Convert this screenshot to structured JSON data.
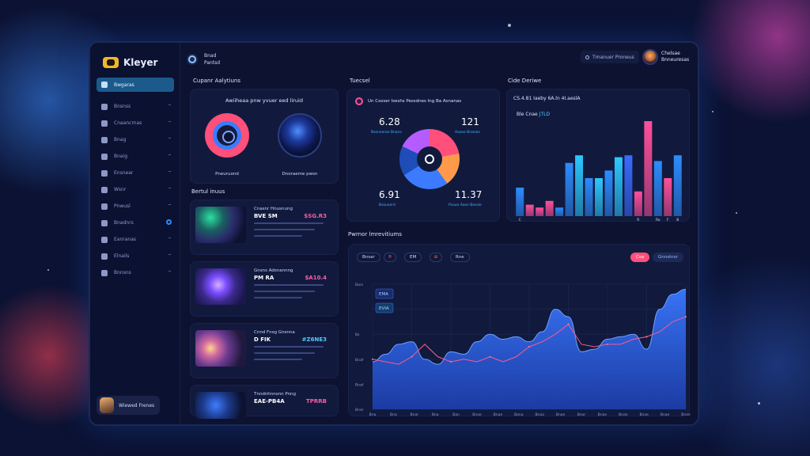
{
  "app": {
    "name": "Kleyer"
  },
  "sidebar": {
    "items": [
      {
        "label": "Bwgaras",
        "active": true
      },
      {
        "label": "Bnsnss"
      },
      {
        "label": "Cnaancrnas"
      },
      {
        "label": "Bnag"
      },
      {
        "label": "Bnaig"
      },
      {
        "label": "Ensnear"
      },
      {
        "label": "Wsnr"
      },
      {
        "label": "Pnwusl"
      },
      {
        "label": "Bnadnrs"
      },
      {
        "label": "Eanranas"
      },
      {
        "label": "Elnails"
      },
      {
        "label": "Bnnsns"
      }
    ],
    "profile_name": "Wiewed Frenes"
  },
  "header": {
    "breadcrumb_line1": "Bnad",
    "breadcrumb_line2": "Pantsd",
    "search_label": "Tmanuer Proneus",
    "user_line1": "Chelsae",
    "user_line2": "Bnneuresas"
  },
  "compact": {
    "title": "Cupanr Aalytiuns",
    "subtitle": "Awiiheaa pnw yvuer eed liruid",
    "left_label": "Pneuruond",
    "right_label": "Dnoraeme pwsn"
  },
  "media": {
    "title": "Bertul inuus",
    "items": [
      {
        "subtitle": "Cnasnr Hnusnung",
        "title": "BVE SM",
        "price": "$SG.R3",
        "thumb": "aurora"
      },
      {
        "subtitle": "Gnsns Adsnannng",
        "title": "PM RA",
        "price": "$A10.4",
        "thumb": "orb"
      },
      {
        "subtitle": "Cnnd Fnsg Gnsnna",
        "title": "D FIK",
        "price": "#Z6NE3",
        "thumb": "galaxy"
      },
      {
        "subtitle": "Tnndnhnnsnn Pnng",
        "title": "EAE-PB4A",
        "price": "TPRRB",
        "thumb": "figure"
      }
    ]
  },
  "tweets": {
    "title": "Tuecsel",
    "header": "Un Csoser Iseshs Pessdnes Ing Ba Asnanas",
    "stats": [
      {
        "value": "6.28",
        "label": "Bsonseroe Bnans"
      },
      {
        "value": "121",
        "label": "Asaoe Bnanas"
      },
      {
        "value": "6.91",
        "label": "Bsouserd"
      },
      {
        "value": "11.37",
        "label": "Psoue Aasn Bessie"
      }
    ],
    "donut_segments": [
      {
        "value": 22,
        "color": "#ff4f7a"
      },
      {
        "value": 18,
        "color": "#ff9a4a"
      },
      {
        "value": 26,
        "color": "#3c7bff"
      },
      {
        "value": 16,
        "color": "#1e4db8"
      },
      {
        "value": 18,
        "color": "#b45cff"
      }
    ]
  },
  "cite": {
    "title": "Cide Deriwe",
    "stat_line": "CS.4.81 Iaeby 6A.ln 4I.aeslA",
    "label_a": "Ble Cnae",
    "label_b": "JTLD"
  },
  "chart_data": [
    {
      "type": "bar",
      "title": "",
      "categories": [
        "C",
        "",
        "",
        "",
        "",
        "",
        "",
        "",
        "",
        "",
        "",
        "",
        "R",
        "",
        "Ro",
        "F",
        "B"
      ],
      "values": [
        30,
        12,
        9,
        16,
        9,
        56,
        64,
        40,
        40,
        48,
        62,
        64,
        26,
        100,
        58,
        40,
        64
      ],
      "colors": [
        "#2c8cff",
        "#ff4f9a",
        "#ff4f9a",
        "#ff4f9a",
        "#2c8cff",
        "#2c8cff",
        "#2cc8ff",
        "#2c8cff",
        "#2cc8ff",
        "#2c8cff",
        "#2cc8ff",
        "#3a6bff",
        "#ff4f9a",
        "#ff4f9a",
        "#2c8cff",
        "#ff4f9a",
        "#2c8cff"
      ],
      "ylim": [
        0,
        100
      ]
    },
    {
      "type": "area",
      "title": "Pwrnor lmrevitiums",
      "toolbar": [
        "Bnsar",
        "EM",
        "Rne"
      ],
      "toggle_on": "Csa",
      "toggle_off": "Gnnstnsr",
      "y_ticks": [
        "Bars",
        "",
        "Bs",
        "Bnaf",
        "Bnaf",
        "Bnar"
      ],
      "x_ticks": [
        "Bna",
        "Bna",
        "Bnar",
        "Bna",
        "Ban",
        "Bnae",
        "Bnae",
        "Bana",
        "Bnaa",
        "Bnae",
        "Bnor",
        "Bnae",
        "Bnae",
        "Bnae",
        "Bnae",
        "Bnae"
      ],
      "legend": [
        "EMA",
        "EVIA"
      ],
      "ylim": [
        0,
        100
      ],
      "series": [
        {
          "values": [
            38,
            44,
            52,
            54,
            40,
            36,
            46,
            44,
            54,
            60,
            56,
            58,
            54,
            62,
            80,
            74,
            46,
            48,
            56,
            58,
            60,
            48,
            80,
            92,
            96
          ]
        },
        {
          "values": [
            40,
            38,
            36,
            42,
            52,
            42,
            38,
            40,
            38,
            42,
            38,
            42,
            50,
            54,
            60,
            68,
            52,
            50,
            52,
            52,
            56,
            58,
            62,
            70,
            74
          ]
        }
      ]
    }
  ]
}
